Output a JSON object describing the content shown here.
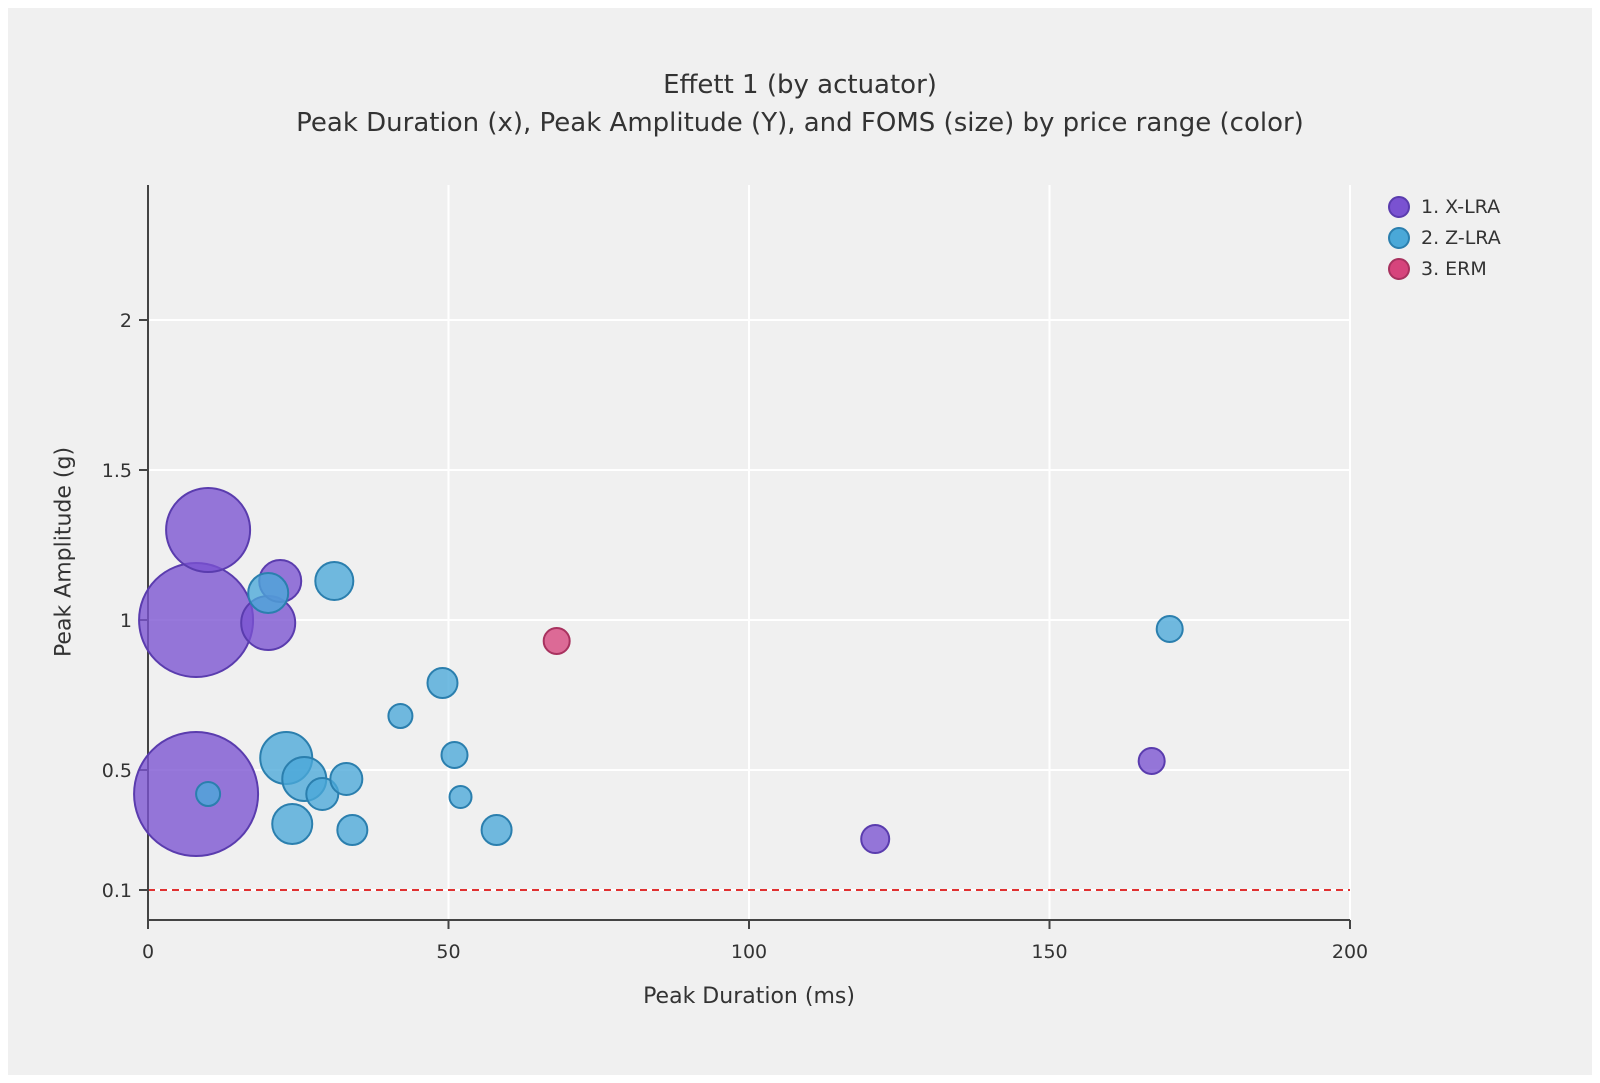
{
  "chart_data": {
    "type": "scatter",
    "subtype": "bubble",
    "title": "Effett 1 (by actuator)",
    "subtitle": "Peak Duration (x), Peak Amplitude (Y), and FOMS (size) by price range (color)",
    "xlabel": "Peak Duration (ms)",
    "ylabel": "Peak Amplitude (g)",
    "xlim": [
      0,
      200
    ],
    "ylim": [
      0,
      2.45
    ],
    "xticks": [
      0,
      50,
      100,
      150,
      200
    ],
    "yticks": [
      0.1,
      0.5,
      1,
      1.5,
      2
    ],
    "grid": true,
    "grid_color": "#ffffff",
    "background_color": "#f0f0f0",
    "legend_position": "top-right",
    "size_encoding": "FOMS",
    "color_encoding": "price range",
    "threshold_line": {
      "y": 0.1,
      "color": "#e03131",
      "style": "dashed"
    },
    "series": [
      {
        "name": "1. X-LRA",
        "color": "#7a52d1",
        "stroke": "#5a3cae",
        "points": [
          {
            "x": 10,
            "y": 1.3,
            "r": 42
          },
          {
            "x": 8,
            "y": 1.0,
            "r": 57
          },
          {
            "x": 22,
            "y": 1.13,
            "r": 21
          },
          {
            "x": 20,
            "y": 0.99,
            "r": 27
          },
          {
            "x": 8,
            "y": 0.42,
            "r": 62
          },
          {
            "x": 121,
            "y": 0.27,
            "r": 14
          },
          {
            "x": 167,
            "y": 0.53,
            "r": 13
          }
        ]
      },
      {
        "name": "2. Z-LRA",
        "color": "#4aa8d8",
        "stroke": "#2b7fae",
        "points": [
          {
            "x": 20,
            "y": 1.09,
            "r": 20
          },
          {
            "x": 31,
            "y": 1.13,
            "r": 19
          },
          {
            "x": 10,
            "y": 0.42,
            "r": 12
          },
          {
            "x": 23,
            "y": 0.54,
            "r": 26
          },
          {
            "x": 26,
            "y": 0.47,
            "r": 22
          },
          {
            "x": 29,
            "y": 0.42,
            "r": 16
          },
          {
            "x": 24,
            "y": 0.32,
            "r": 20
          },
          {
            "x": 33,
            "y": 0.47,
            "r": 16
          },
          {
            "x": 34,
            "y": 0.3,
            "r": 15
          },
          {
            "x": 42,
            "y": 0.68,
            "r": 12
          },
          {
            "x": 49,
            "y": 0.79,
            "r": 15
          },
          {
            "x": 51,
            "y": 0.55,
            "r": 13
          },
          {
            "x": 52,
            "y": 0.41,
            "r": 11
          },
          {
            "x": 58,
            "y": 0.3,
            "r": 15
          },
          {
            "x": 170,
            "y": 0.97,
            "r": 13
          }
        ]
      },
      {
        "name": "3. ERM",
        "color": "#d6447c",
        "stroke": "#a8325f",
        "points": [
          {
            "x": 68,
            "y": 0.93,
            "r": 13
          }
        ]
      }
    ]
  }
}
